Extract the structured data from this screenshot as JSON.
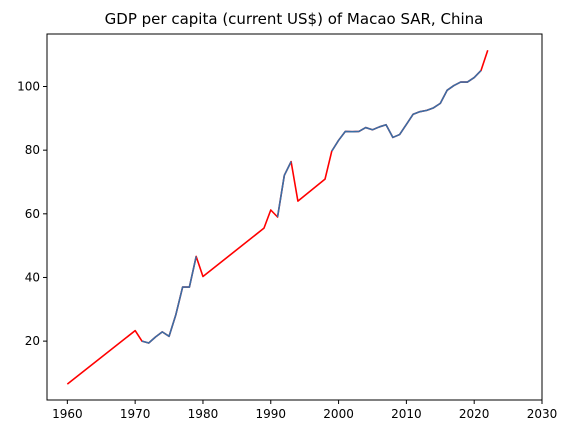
{
  "chart_data": {
    "type": "line",
    "title": "GDP per capita (current US$) of Macao SAR, China",
    "xlabel": "",
    "ylabel": "",
    "xlim": [
      1957,
      2030
    ],
    "ylim": [
      1.5,
      116.5
    ],
    "xticks": [
      1960,
      1970,
      1980,
      1990,
      2000,
      2010,
      2020,
      2030
    ],
    "yticks": [
      20,
      40,
      60,
      80,
      100
    ],
    "grid": false,
    "legend": "none",
    "series": [
      {
        "color": "#ff0000",
        "x": [
          1960,
          1970,
          1971,
          1972,
          1973,
          1974,
          1975,
          1976,
          1977,
          1978,
          1979,
          1980,
          1989,
          1990,
          1991,
          1992,
          1993,
          1994,
          1998,
          1999,
          2000,
          2001,
          2002,
          2003,
          2004,
          2005,
          2006,
          2007,
          2008,
          2009,
          2010,
          2011,
          2012,
          2013,
          2014,
          2015,
          2016,
          2017,
          2018,
          2019,
          2020,
          2021,
          2022
        ],
        "y": [
          6.5,
          23.3,
          20.0,
          19.4,
          21.3,
          22.9,
          21.5,
          28.3,
          37.0,
          37.0,
          46.6,
          40.3,
          55.5,
          61.2,
          59.0,
          72.1,
          76.4,
          64.0,
          70.9,
          79.7,
          83.1,
          85.9,
          85.8,
          85.9,
          87.1,
          86.4,
          87.3,
          88.0,
          84.0,
          84.9,
          88.1,
          91.3,
          92.1,
          92.5,
          93.3,
          94.7,
          98.8,
          100.3,
          101.4,
          101.4,
          102.8,
          105.0,
          111.4
        ]
      },
      {
        "color": "#3a6ea5",
        "x": [
          1971,
          1972,
          1973,
          1974,
          1975,
          1976,
          1977,
          1978,
          1979
        ],
        "y": [
          20.0,
          19.4,
          21.3,
          22.9,
          21.5,
          28.3,
          37.0,
          37.0,
          46.6
        ]
      },
      {
        "color": "#3a6ea5",
        "x": [
          1991,
          1992,
          1993
        ],
        "y": [
          59.0,
          72.1,
          76.4
        ]
      },
      {
        "color": "#3a6ea5",
        "x": [
          1999,
          2000,
          2001,
          2002,
          2003,
          2004,
          2005,
          2006,
          2007,
          2008,
          2009,
          2010,
          2011,
          2012,
          2013,
          2014,
          2015,
          2016,
          2017,
          2018,
          2019,
          2020,
          2021
        ],
        "y": [
          79.7,
          83.1,
          85.9,
          85.8,
          85.9,
          87.1,
          86.4,
          87.3,
          88.0,
          84.0,
          84.9,
          88.1,
          91.3,
          92.1,
          92.5,
          93.3,
          94.7,
          98.8,
          100.3,
          101.4,
          101.4,
          102.8,
          105.0
        ]
      }
    ]
  }
}
